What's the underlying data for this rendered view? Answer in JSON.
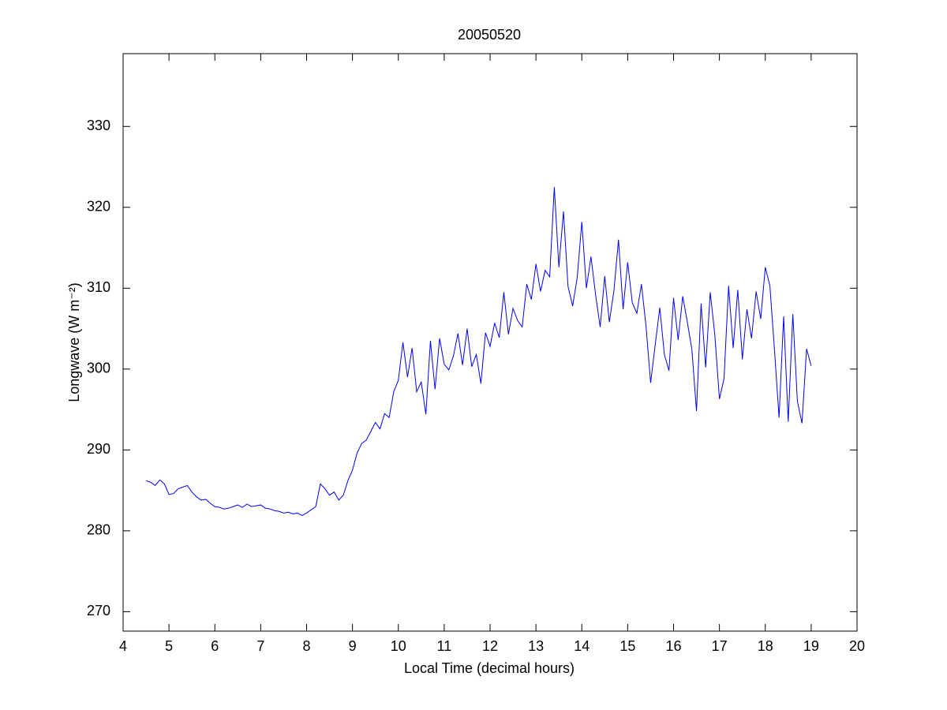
{
  "chart_data": {
    "type": "line",
    "title": "20050520",
    "xlabel": "Local Time (decimal hours)",
    "ylabel": "Longwave (W m⁻²)",
    "xlim": [
      4,
      20
    ],
    "xticks": [
      4,
      5,
      6,
      7,
      8,
      9,
      10,
      11,
      12,
      13,
      14,
      15,
      16,
      17,
      18,
      19,
      20
    ],
    "ylim": [
      267.6,
      339
    ],
    "yticks": [
      270,
      280,
      290,
      300,
      310,
      320,
      330
    ],
    "box": true,
    "x": [
      4.5,
      4.6,
      4.7,
      4.8,
      4.9,
      5.0,
      5.1,
      5.2,
      5.3,
      5.4,
      5.5,
      5.6,
      5.7,
      5.8,
      5.9,
      6.0,
      6.1,
      6.2,
      6.3,
      6.4,
      6.5,
      6.6,
      6.7,
      6.8,
      6.9,
      7.0,
      7.1,
      7.2,
      7.3,
      7.4,
      7.5,
      7.6,
      7.7,
      7.8,
      7.9,
      8.0,
      8.1,
      8.2,
      8.3,
      8.4,
      8.5,
      8.6,
      8.7,
      8.8,
      8.9,
      9.0,
      9.1,
      9.2,
      9.3,
      9.4,
      9.5,
      9.6,
      9.7,
      9.8,
      9.9,
      10.0,
      10.1,
      10.2,
      10.3,
      10.4,
      10.5,
      10.6,
      10.7,
      10.8,
      10.9,
      11.0,
      11.1,
      11.2,
      11.3,
      11.4,
      11.5,
      11.6,
      11.7,
      11.8,
      11.9,
      12.0,
      12.1,
      12.2,
      12.3,
      12.4,
      12.5,
      12.6,
      12.7,
      12.8,
      12.9,
      13.0,
      13.1,
      13.2,
      13.3,
      13.4,
      13.5,
      13.6,
      13.7,
      13.8,
      13.9,
      14.0,
      14.1,
      14.2,
      14.3,
      14.4,
      14.5,
      14.6,
      14.7,
      14.8,
      14.9,
      15.0,
      15.1,
      15.2,
      15.3,
      15.4,
      15.5,
      15.6,
      15.7,
      15.8,
      15.9,
      16.0,
      16.1,
      16.2,
      16.3,
      16.4,
      16.5,
      16.6,
      16.7,
      16.8,
      16.9,
      17.0,
      17.1,
      17.2,
      17.3,
      17.4,
      17.5,
      17.6,
      17.7,
      17.8,
      17.9,
      18.0,
      18.1,
      18.2,
      18.3,
      18.4,
      18.5,
      18.6,
      18.7,
      18.8,
      18.9,
      19.0
    ],
    "series": [
      {
        "color": "#0000ff",
        "values": [
          286.2,
          286.0,
          285.6,
          286.3,
          285.8,
          284.5,
          284.6,
          285.2,
          285.4,
          285.6,
          284.8,
          284.2,
          283.8,
          283.9,
          283.4,
          283.0,
          282.9,
          282.7,
          282.8,
          283.0,
          283.2,
          282.9,
          283.3,
          283.0,
          283.1,
          283.2,
          282.8,
          282.7,
          282.5,
          282.4,
          282.2,
          282.3,
          282.1,
          282.2,
          281.9,
          282.2,
          282.6,
          283.0,
          285.8,
          285.2,
          284.4,
          284.8,
          283.8,
          284.4,
          286.2,
          287.5,
          289.6,
          290.8,
          291.2,
          292.3,
          293.4,
          292.6,
          294.5,
          294.0,
          297.2,
          298.6,
          303.3,
          299.0,
          302.6,
          297.2,
          298.4,
          294.4,
          303.5,
          297.5,
          303.8,
          300.6,
          299.9,
          301.6,
          304.4,
          300.5,
          305.0,
          300.3,
          301.8,
          298.2,
          304.5,
          302.8,
          305.7,
          303.9,
          309.5,
          304.3,
          307.5,
          306.0,
          305.2,
          310.5,
          308.6,
          313.0,
          309.6,
          312.2,
          311.4,
          322.5,
          312.6,
          319.5,
          310.2,
          307.8,
          311.3,
          318.2,
          310.0,
          313.9,
          309.2,
          305.2,
          311.5,
          305.8,
          309.7,
          316.0,
          307.4,
          313.2,
          308.2,
          306.9,
          310.5,
          305.3,
          298.3,
          303.0,
          307.6,
          301.8,
          299.8,
          308.8,
          303.6,
          309.0,
          305.8,
          302.4,
          294.8,
          308.1,
          300.2,
          309.5,
          304.2,
          296.3,
          298.8,
          310.3,
          302.6,
          309.8,
          301.2,
          307.4,
          303.8,
          309.6,
          306.2,
          312.6,
          310.3,
          302.4,
          294.0,
          306.5,
          293.5,
          306.8,
          296.0,
          293.3,
          302.5,
          300.4
        ]
      }
    ]
  }
}
